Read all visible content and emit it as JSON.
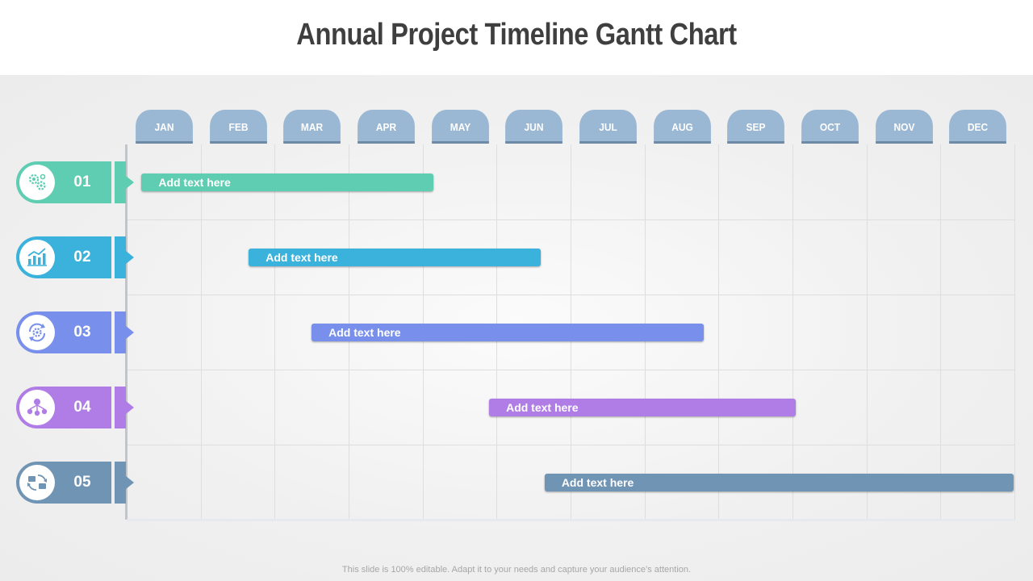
{
  "title": "Annual Project Timeline Gantt Chart",
  "footer": "This slide is 100% editable. Adapt it to your needs and capture your audience’s attention.",
  "chart_data": {
    "type": "gantt",
    "months": [
      "JAN",
      "FEB",
      "MAR",
      "APR",
      "MAY",
      "JUN",
      "JUL",
      "AUG",
      "SEP",
      "OCT",
      "NOV",
      "DEC"
    ],
    "tasks": [
      {
        "id": "01",
        "label": "Add text here",
        "start_month": 1.2,
        "end_month": 5.15,
        "color": "#5ecdb2",
        "icon": "gears-icon"
      },
      {
        "id": "02",
        "label": "Add text here",
        "start_month": 2.65,
        "end_month": 6.6,
        "color": "#3ab2db",
        "icon": "bar-chart-icon"
      },
      {
        "id": "03",
        "label": "Add text here",
        "start_month": 3.5,
        "end_month": 8.8,
        "color": "#7890ec",
        "icon": "cycle-gear-icon"
      },
      {
        "id": "04",
        "label": "Add text here",
        "start_month": 5.9,
        "end_month": 10.05,
        "color": "#b07de7",
        "icon": "network-icon"
      },
      {
        "id": "05",
        "label": "Add text here",
        "start_month": 6.65,
        "end_month": 13.0,
        "color": "#7094b4",
        "icon": "sync-folders-icon"
      }
    ]
  }
}
